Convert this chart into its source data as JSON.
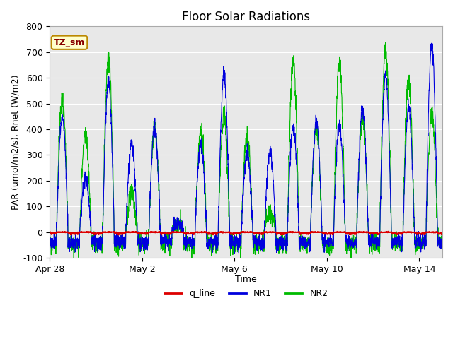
{
  "title": "Floor Solar Radiations",
  "xlabel": "Time",
  "ylabel": "PAR (umol/m2/s), Rnet (W/m2)",
  "ylim": [
    -100,
    800
  ],
  "yticks": [
    -100,
    0,
    100,
    200,
    300,
    400,
    500,
    600,
    700,
    800
  ],
  "plot_bg_color": "#e8e8e8",
  "fig_bg_color": "#ffffff",
  "line_colors": {
    "q_line": "#dd0000",
    "NR1": "#0000dd",
    "NR2": "#00bb00"
  },
  "legend_label_box": "TZ_sm",
  "legend_box_facecolor": "#ffffcc",
  "legend_box_edgecolor": "#bb8800",
  "xtick_labels": [
    "Apr 28",
    "May 2",
    "May 6",
    "May 10",
    "May 14"
  ],
  "xtick_positions": [
    0,
    4,
    8,
    12,
    16
  ],
  "num_days": 17,
  "title_fontsize": 12,
  "label_fontsize": 9,
  "tick_fontsize": 9
}
